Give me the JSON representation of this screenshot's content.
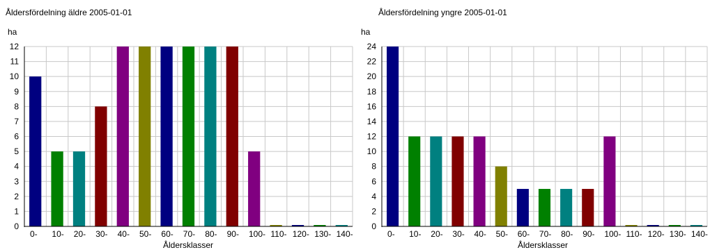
{
  "chart_data": [
    {
      "type": "bar",
      "title": "Åldersfördelning äldre 2005-01-01",
      "ylabel": "ha",
      "xlabel": "Åldersklasser",
      "ylim": [
        0,
        12
      ],
      "yticks": [
        0,
        1,
        2,
        3,
        4,
        5,
        6,
        7,
        8,
        9,
        10,
        11,
        12
      ],
      "grid": true,
      "categories": [
        "0-",
        "10-",
        "20-",
        "30-",
        "40-",
        "50-",
        "60-",
        "70-",
        "80-",
        "90-",
        "100-",
        "110-",
        "120-",
        "130-",
        "140-"
      ],
      "values": [
        10,
        5,
        5,
        8,
        12,
        12,
        12,
        12,
        12,
        12,
        5,
        0,
        0,
        0,
        0
      ],
      "colors": [
        "#000080",
        "#008000",
        "#008080",
        "#800000",
        "#800080",
        "#808000",
        "#000080",
        "#008000",
        "#008080",
        "#800000",
        "#800080",
        "#808000",
        "#000080",
        "#008000",
        "#008080"
      ]
    },
    {
      "type": "bar",
      "title": "Åldersfördelning yngre 2005-01-01",
      "ylabel": "ha",
      "xlabel": "Åldersklasser",
      "ylim": [
        0,
        24
      ],
      "yticks": [
        0,
        2,
        4,
        6,
        8,
        10,
        12,
        14,
        16,
        18,
        20,
        22,
        24
      ],
      "grid": true,
      "categories": [
        "0-",
        "10-",
        "20-",
        "30-",
        "40-",
        "50-",
        "60-",
        "70-",
        "80-",
        "90-",
        "100-",
        "110-",
        "120-",
        "130-",
        "140-"
      ],
      "values": [
        24,
        12,
        12,
        12,
        12,
        8,
        5,
        5,
        5,
        5,
        12,
        0,
        0,
        0,
        0
      ],
      "colors": [
        "#000080",
        "#008000",
        "#008080",
        "#800000",
        "#800080",
        "#808000",
        "#000080",
        "#008000",
        "#008080",
        "#800000",
        "#800080",
        "#808000",
        "#000080",
        "#008000",
        "#008080"
      ]
    }
  ]
}
